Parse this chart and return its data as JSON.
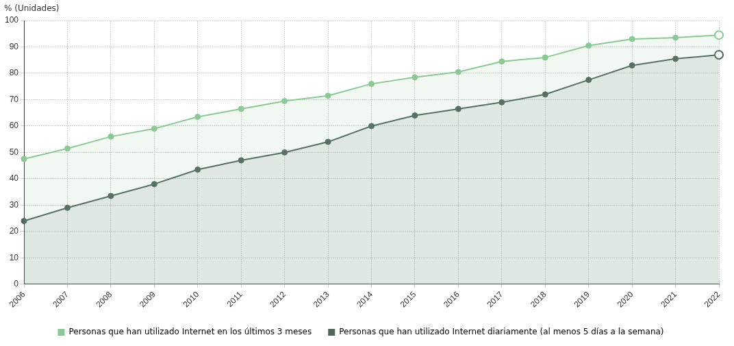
{
  "chart_data": {
    "type": "area",
    "ylabel": "% (Unidades)",
    "categories": [
      "2006",
      "2007",
      "2008",
      "2009",
      "2010",
      "2011",
      "2012",
      "2013",
      "2014",
      "2015",
      "2016",
      "2017",
      "2018",
      "2019",
      "2020",
      "2021",
      "2022"
    ],
    "series": [
      {
        "name": "Personas que han utilizado Internet en los últimos 3 meses",
        "color": "#8cc896",
        "values": [
          47.5,
          51.5,
          56,
          59,
          63.5,
          66.5,
          69.5,
          71.5,
          76,
          78.5,
          80.5,
          84.5,
          86,
          90.5,
          93,
          93.5,
          94.5
        ]
      },
      {
        "name": "Personas que han utilizado Internet diariamente (al menos 5 días a la semana)",
        "color": "#4f6658",
        "values": [
          24,
          29,
          33.5,
          38,
          43.5,
          47,
          50,
          54,
          60,
          64,
          66.5,
          69,
          72,
          77.5,
          83,
          85.5,
          87
        ]
      }
    ],
    "ylim": [
      0,
      100
    ],
    "yticks": [
      0,
      10,
      20,
      30,
      40,
      50,
      60,
      70,
      80,
      90,
      100
    ],
    "grid": true,
    "legend": "bottom",
    "marker": "circle",
    "line_style": "solid"
  }
}
